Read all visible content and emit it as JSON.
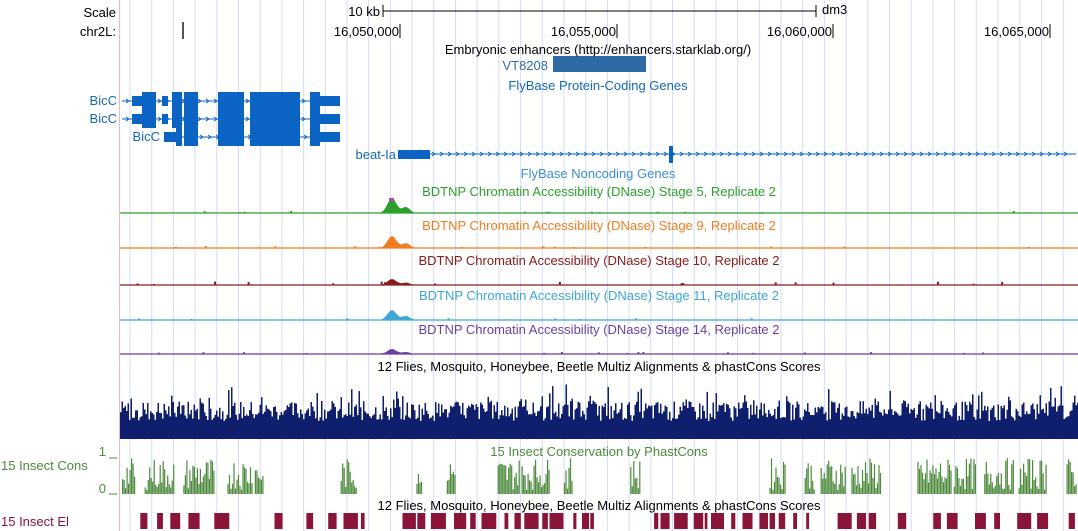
{
  "ruler": {
    "scale_label": "Scale",
    "scale_bar_label": "10 kb",
    "assembly": "dm3",
    "chrom_label": "chr2L:",
    "positions": [
      "16,050,000",
      "16,055,000",
      "16,060,000",
      "16,065,000"
    ]
  },
  "tracks": {
    "enhancers": {
      "title": "Embryonic enhancers (http://enhancers.starklab.org/)",
      "item": "VT8208",
      "color": "#2f6aa6"
    },
    "flybase_coding": {
      "title": "FlyBase Protein-Coding Genes",
      "genes": [
        "BicC",
        "BicC",
        "BicC",
        "beat-Ia"
      ],
      "color": "#0b63c4"
    },
    "flybase_noncoding": {
      "title": "FlyBase Noncoding Genes",
      "color": "#3d8ed6"
    },
    "dnase": [
      {
        "title": "BDTNP Chromatin Accessibility (DNase) Stage 5, Replicate 2",
        "color": "#2ca02c"
      },
      {
        "title": "BDTNP Chromatin Accessibility (DNase) Stage 9, Replicate 2",
        "color": "#f07c1e"
      },
      {
        "title": "BDTNP Chromatin Accessibility (DNase) Stage 10, Replicate 2",
        "color": "#8b1a1a"
      },
      {
        "title": "BDTNP Chromatin Accessibility (DNase) Stage 11, Replicate 2",
        "color": "#3ea7d6"
      },
      {
        "title": "BDTNP Chromatin Accessibility (DNase) Stage 14, Replicate 2",
        "color": "#6a3fa0"
      }
    ],
    "multiz": {
      "title": "12 Flies, Mosquito, Honeybee, Beetle Multiz Alignments & phastCons Scores",
      "color": "#0f1f6e"
    },
    "phastcons": {
      "title": "15 Insect Conservation by PhastCons",
      "side_label": "15 Insect Cons",
      "y_max": "1",
      "y_min": "0",
      "color": "#4d8a3c"
    },
    "elements": {
      "title": "12 Flies, Mosquito, Honeybee, Beetle Multiz Alignments & phastCons Scores",
      "side_label": "15 Insect El",
      "color": "#8a1538"
    }
  }
}
